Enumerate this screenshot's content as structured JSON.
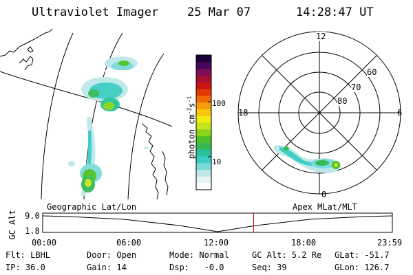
{
  "header": {
    "instrument": "Ultraviolet Imager",
    "date": "25 Mar 07",
    "time": "14:28:47 UT"
  },
  "colorbar": {
    "unit_label": "photon cm",
    "unit_exp1": "-2",
    "unit_s": "s",
    "unit_exp2": "-1",
    "ticks": [
      {
        "label": "100",
        "value": 100
      },
      {
        "label": "10",
        "value": 10
      }
    ],
    "colors": [
      "#ffffff",
      "#e8f4f4",
      "#bfe8e8",
      "#7ddada",
      "#3ecdc4",
      "#28c39a",
      "#35b956",
      "#4cc22a",
      "#88d51c",
      "#c5e51a",
      "#f1ec12",
      "#f6c70e",
      "#f59c0a",
      "#ef6a07",
      "#e33705",
      "#cc1313",
      "#a40f33",
      "#7a0d55",
      "#46085a",
      "#1a0238"
    ]
  },
  "polar": {
    "mlt_labels": {
      "top": "12",
      "left": "18",
      "right": "6",
      "bottom": "0"
    },
    "lat_labels": [
      "60",
      "70",
      "80"
    ]
  },
  "timeline": {
    "ylabel": "GC Alt",
    "ytick_top": "9.0",
    "ytick_bottom": "1.8",
    "left_caption": "Geographic Lat/Lon",
    "right_caption": "Apex MLat/MLT",
    "xticks": [
      "00:00",
      "06:00",
      "12:00",
      "18:00",
      "23:59"
    ],
    "marker_time": "14:28",
    "marker_color": "#cc0000"
  },
  "footer": {
    "filter": "Flt: LBHL",
    "ip": "IP: 36.0",
    "door": "Door: Open",
    "gain": "Gain: 14",
    "mode": "Mode: Normal",
    "dsp": "Dsp:   -0.0",
    "gc_alt": "GC Alt: 5.2 Re",
    "seq": "Seq: 39",
    "glat": "GLat: -51.7",
    "glon": "GLon: 126.7"
  }
}
